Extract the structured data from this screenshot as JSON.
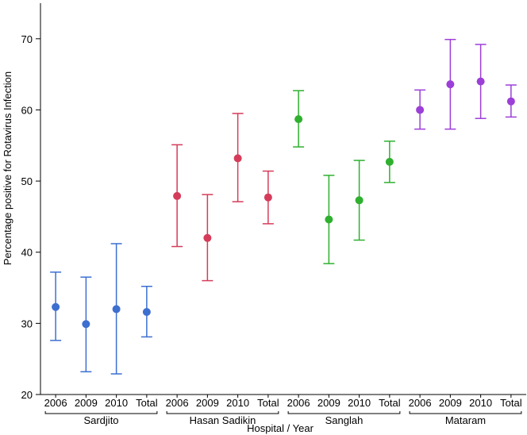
{
  "chart_data": {
    "type": "scatter",
    "subtype": "error-bar",
    "title": "",
    "xlabel": "Hospital / Year",
    "ylabel": "Percentage positive for Rotavirus Infection",
    "ylim": [
      20,
      75
    ],
    "yticks": [
      20,
      30,
      40,
      50,
      60,
      70
    ],
    "grid": false,
    "legend": "none",
    "groups": [
      {
        "name": "Sardjito",
        "color": "#3d6fd0",
        "categories": [
          "2006",
          "2009",
          "2010",
          "Total"
        ],
        "values": [
          32.3,
          29.9,
          32.0,
          31.6
        ],
        "lower": [
          27.6,
          23.2,
          22.9,
          28.1
        ],
        "upper": [
          37.2,
          36.5,
          41.2,
          35.2
        ]
      },
      {
        "name": "Hasan Sadikin",
        "color": "#d53c5a",
        "categories": [
          "2006",
          "2009",
          "2010",
          "Total"
        ],
        "values": [
          47.9,
          42.0,
          53.2,
          47.7
        ],
        "lower": [
          40.8,
          36.0,
          47.1,
          44.0
        ],
        "upper": [
          55.1,
          48.1,
          59.5,
          51.4
        ]
      },
      {
        "name": "Sanglah",
        "color": "#2fb02f",
        "categories": [
          "2006",
          "2009",
          "2010",
          "Total"
        ],
        "values": [
          58.7,
          44.6,
          47.3,
          52.7
        ],
        "lower": [
          54.8,
          38.4,
          41.7,
          49.8
        ],
        "upper": [
          62.7,
          50.8,
          52.9,
          55.6
        ]
      },
      {
        "name": "Mataram",
        "color": "#9c3fd8",
        "categories": [
          "2006",
          "2009",
          "2010",
          "Total"
        ],
        "values": [
          60.0,
          63.6,
          64.0,
          61.2
        ],
        "lower": [
          57.3,
          57.3,
          58.8,
          59.0
        ],
        "upper": [
          62.8,
          69.9,
          69.2,
          63.5
        ]
      }
    ]
  }
}
